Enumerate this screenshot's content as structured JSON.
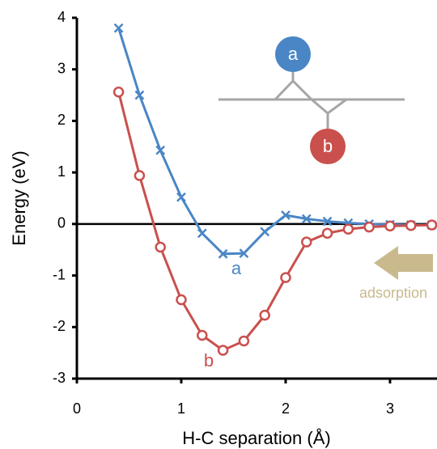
{
  "chart_data": {
    "type": "line",
    "x_label": "H-C separation (Å)",
    "y_label": "Energy (eV)",
    "x": [
      0.4,
      0.6,
      0.8,
      1.0,
      1.2,
      1.4,
      1.6,
      1.8,
      2.0,
      2.2,
      2.4,
      2.6,
      2.8,
      3.0,
      3.2,
      3.4
    ],
    "series": [
      {
        "name": "a",
        "color": "#4a86c5",
        "marker": "x",
        "values": [
          3.8,
          2.5,
          1.43,
          0.52,
          -0.18,
          -0.58,
          -0.57,
          -0.15,
          0.17,
          0.1,
          0.05,
          0.02,
          0.0,
          -0.01,
          -0.02,
          -0.02
        ]
      },
      {
        "name": "b",
        "color": "#c9504d",
        "marker": "o",
        "values": [
          2.56,
          0.94,
          -0.45,
          -1.47,
          -2.16,
          -2.45,
          -2.27,
          -1.77,
          -1.04,
          -0.35,
          -0.18,
          -0.1,
          -0.06,
          -0.04,
          -0.03,
          -0.02
        ]
      }
    ],
    "annotation": "adsorption",
    "annotation_color": "#c9b98d",
    "xlim": [
      0,
      3.45
    ],
    "ylim": [
      -3,
      4
    ],
    "xticks": [
      0,
      1,
      2,
      3
    ],
    "yticks": [
      -3,
      -2,
      -1,
      0,
      1,
      2,
      3,
      4
    ]
  }
}
